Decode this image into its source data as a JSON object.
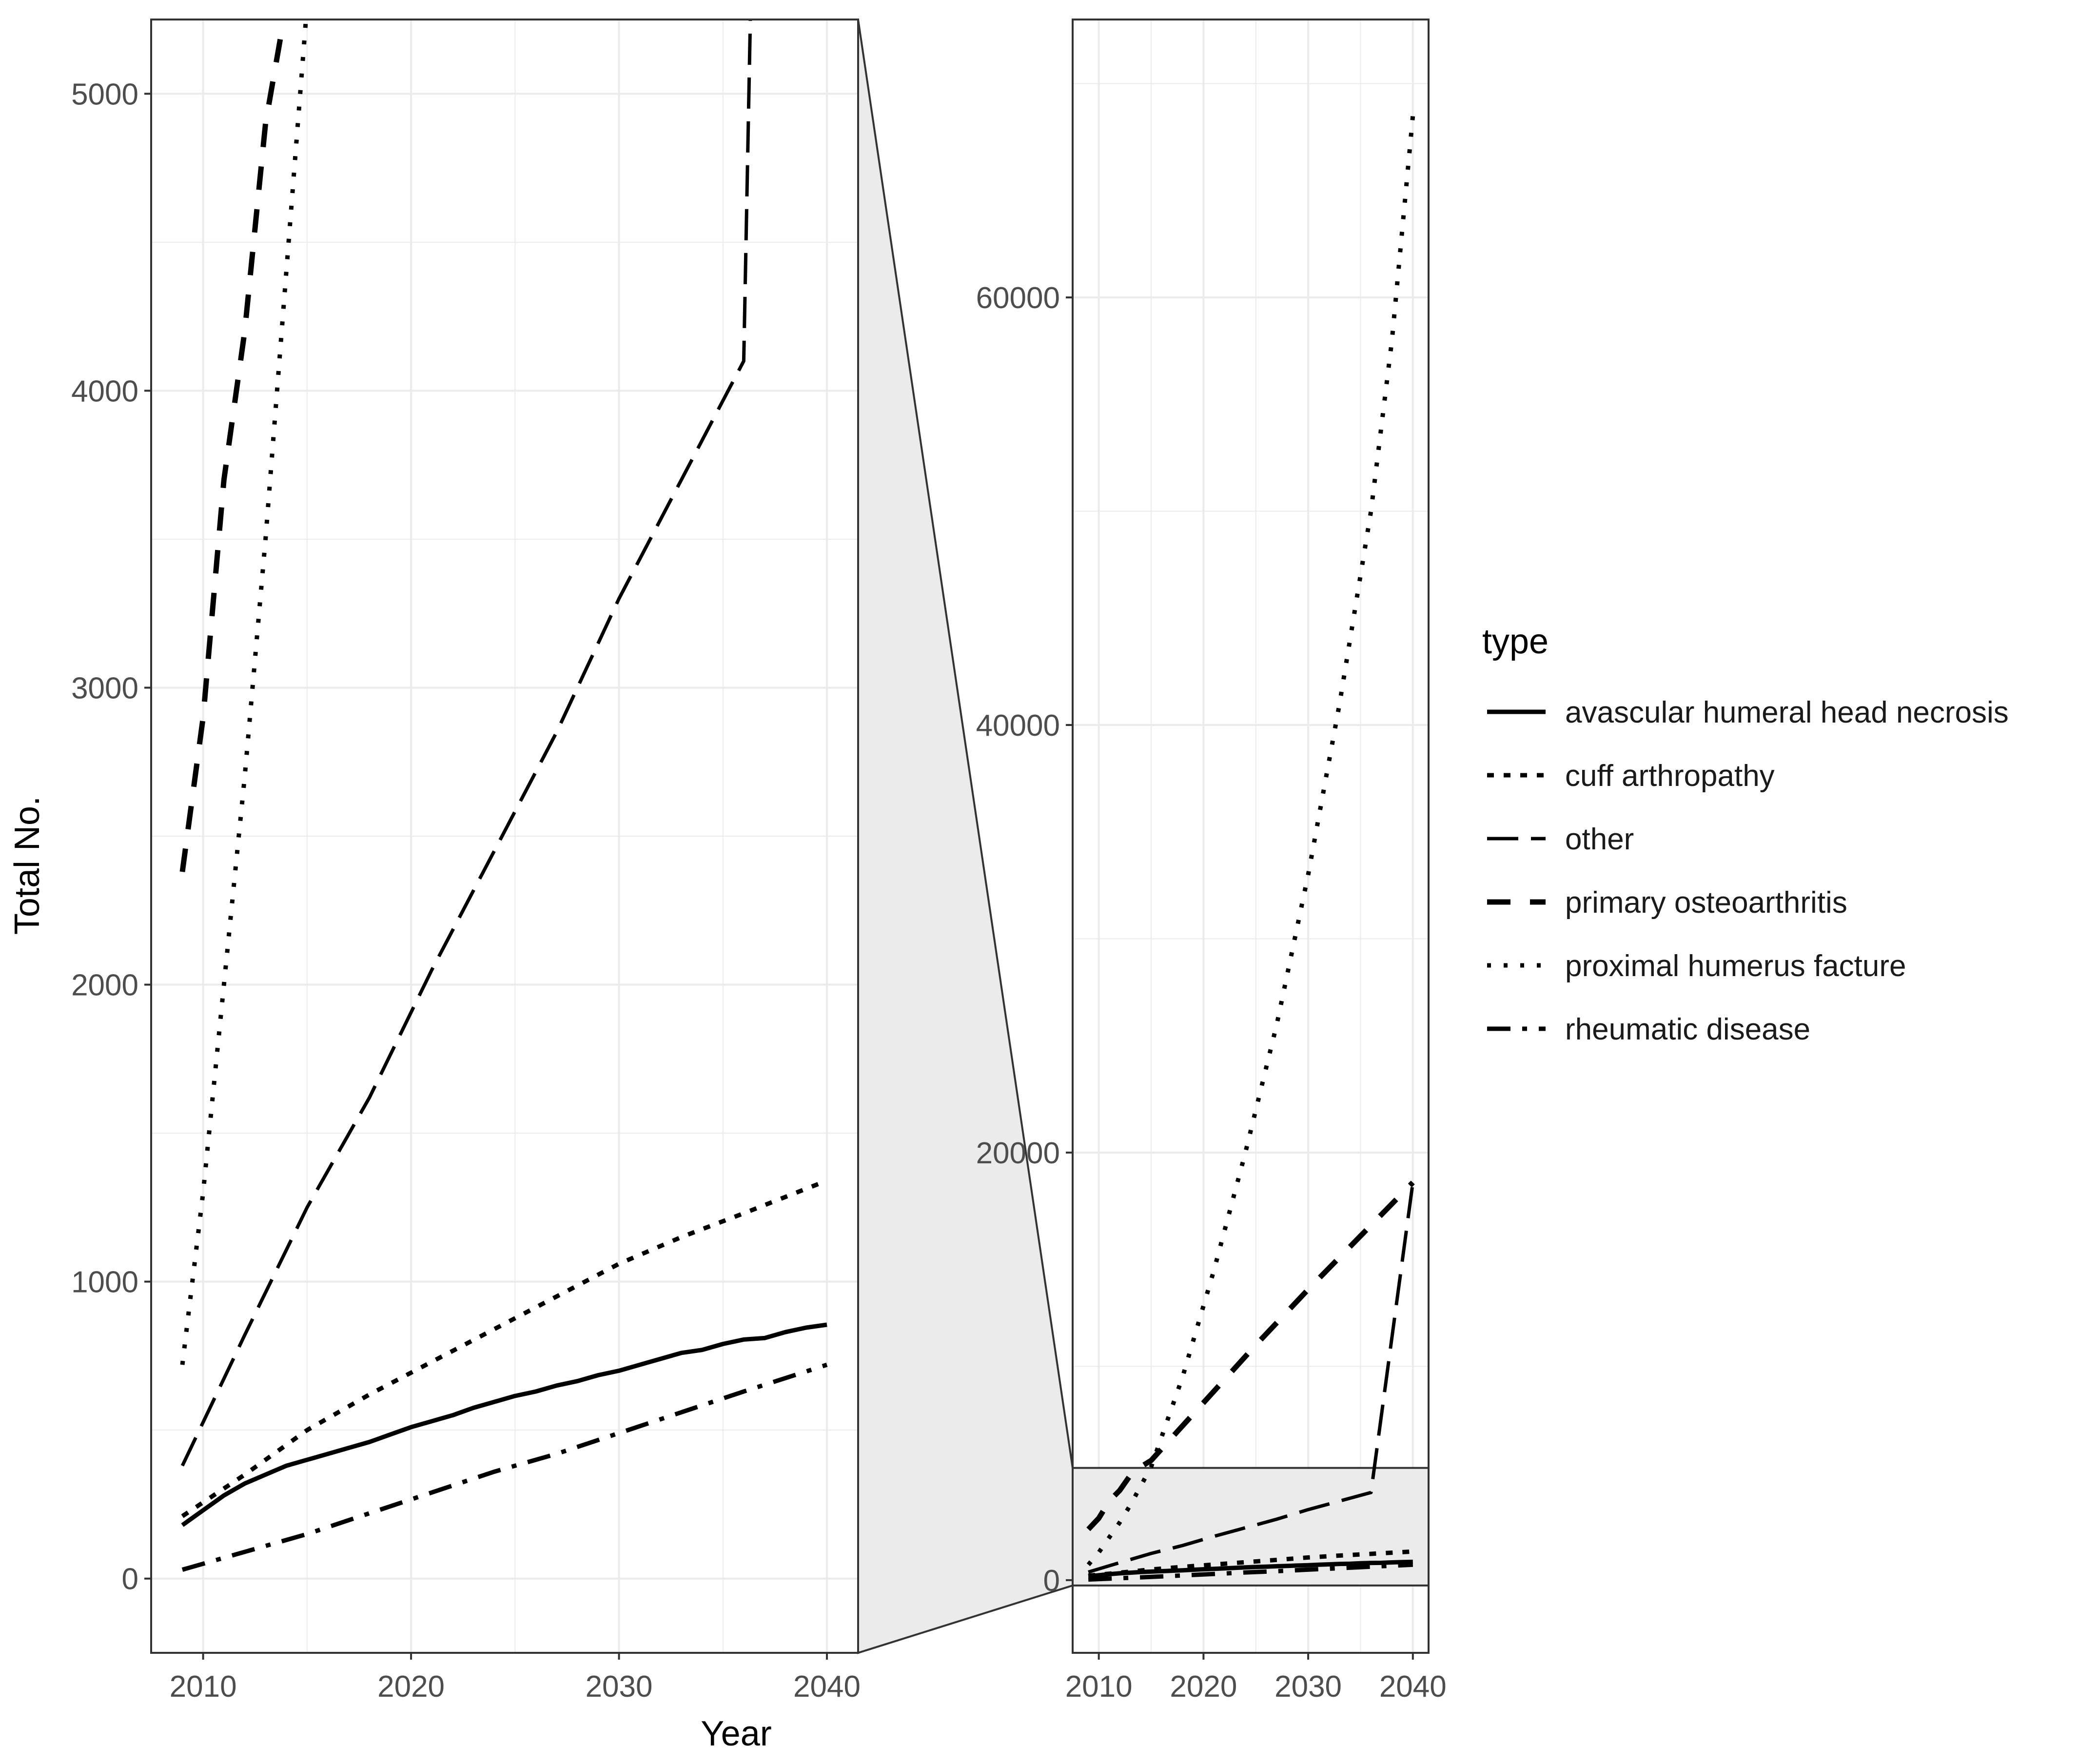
{
  "chart_data": {
    "type": "line",
    "xlabel": "Year",
    "ylabel": "Total No.",
    "legend": {
      "title": "type",
      "position": "right"
    },
    "colors": {
      "line": "#000000",
      "grid": "#ebebeb",
      "border": "#333333",
      "zoom_fill": "#ebebeb",
      "tick_text": "#4d4d4d"
    },
    "series": [
      {
        "name": "avascular humeral head necrosis",
        "dash": "solid",
        "x": [
          2009,
          2010,
          2011,
          2012,
          2013,
          2014,
          2015,
          2016,
          2017,
          2018,
          2019,
          2020,
          2021,
          2022,
          2023,
          2024,
          2025,
          2026,
          2027,
          2028,
          2029,
          2030,
          2031,
          2032,
          2033,
          2034,
          2035,
          2036,
          2037,
          2038,
          2039,
          2040
        ],
        "y": [
          180,
          230,
          280,
          320,
          350,
          380,
          400,
          420,
          440,
          460,
          485,
          510,
          530,
          550,
          575,
          595,
          615,
          630,
          650,
          665,
          685,
          700,
          720,
          740,
          760,
          770,
          790,
          805,
          810,
          830,
          845,
          855
        ]
      },
      {
        "name": "cuff arthropathy",
        "dash": "dotted-short",
        "x": [
          2009,
          2012,
          2015,
          2018,
          2021,
          2024,
          2027,
          2030,
          2033,
          2036,
          2040
        ],
        "y": [
          210,
          350,
          500,
          620,
          730,
          840,
          950,
          1060,
          1150,
          1230,
          1340
        ]
      },
      {
        "name": "other",
        "dash": "dashed-long",
        "x": [
          2009,
          2012,
          2015,
          2018,
          2021,
          2024,
          2027,
          2030,
          2033,
          2036,
          2040
        ],
        "y": [
          380,
          820,
          1250,
          1620,
          2050,
          2450,
          2850,
          3300,
          3700,
          4100,
          18600
        ]
      },
      {
        "name": "primary osteoarthritis",
        "dash": "dashed",
        "x": [
          2009,
          2010,
          2011,
          2012,
          2013,
          2014,
          2015,
          2020,
          2025,
          2030,
          2035,
          2040
        ],
        "y": [
          2380,
          2900,
          3700,
          4200,
          4900,
          5300,
          5600,
          8300,
          11000,
          13600,
          16100,
          18600
        ]
      },
      {
        "name": "proximal humerus facture",
        "dash": "dotted",
        "x": [
          2009,
          2010,
          2011,
          2012,
          2013,
          2014,
          2015,
          2018,
          2021,
          2024,
          2027,
          2030,
          2033,
          2036,
          2038,
          2040
        ],
        "y": [
          720,
          1300,
          2000,
          2700,
          3500,
          4400,
          5300,
          9500,
          14500,
          20000,
          26000,
          33000,
          41000,
          50000,
          58000,
          68500
        ]
      },
      {
        "name": "rheumatic disease",
        "dash": "dashdot",
        "x": [
          2009,
          2012,
          2015,
          2018,
          2021,
          2024,
          2027,
          2030,
          2033,
          2036,
          2040
        ],
        "y": [
          30,
          90,
          150,
          220,
          290,
          360,
          420,
          490,
          560,
          630,
          720
        ]
      }
    ],
    "panels": [
      {
        "id": "zoomed",
        "xlim": [
          2007.5,
          2041.5
        ],
        "ylim": [
          -250,
          5250
        ],
        "x_ticks": [
          2010,
          2020,
          2030,
          2040
        ],
        "y_ticks": [
          0,
          1000,
          2000,
          3000,
          4000,
          5000
        ],
        "show_xlabel": true,
        "show_ylabel": true
      },
      {
        "id": "full",
        "xlim": [
          2007.5,
          2041.5
        ],
        "ylim": [
          -3400,
          73000
        ],
        "x_ticks": [
          2010,
          2020,
          2030,
          2040
        ],
        "y_ticks": [
          0,
          20000,
          40000,
          60000
        ],
        "zoom_region_ylim": [
          -250,
          5250
        ],
        "show_xlabel": false,
        "show_ylabel": false
      }
    ]
  }
}
